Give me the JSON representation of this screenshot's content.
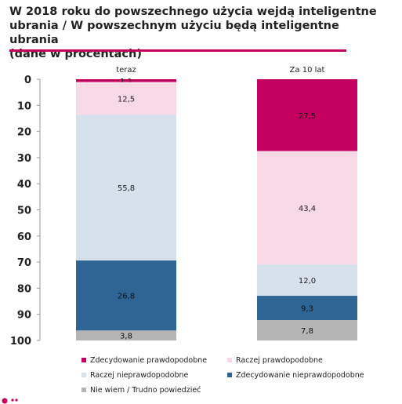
{
  "title_lines": [
    "W 2018 roku do powszechnego użycia wejdą inteligentne",
    "ubrania / W powszechnym użyciu będą inteligentne ubrania",
    "(dane w procentach)"
  ],
  "colors": {
    "accent": "#c4005f",
    "series": [
      "#c4005f",
      "#f8d9e6",
      "#d6e1ec",
      "#2e6594",
      "#b4b4b4"
    ]
  },
  "chart_data": {
    "type": "bar",
    "stacked": true,
    "orientation": "vertical",
    "y_inverted": true,
    "categories": [
      "teraz",
      "Za 10 lat"
    ],
    "ylim": [
      0,
      100
    ],
    "yticks": [
      0,
      10,
      20,
      30,
      40,
      50,
      60,
      70,
      80,
      90,
      100
    ],
    "grid": false,
    "legend_position": "bottom",
    "series": [
      {
        "name": "Zdecydowanie prawdopodobne",
        "values": [
          1.1,
          27.5
        ],
        "labels": [
          "1,1",
          "27,5"
        ]
      },
      {
        "name": "Raczej prawdopodobne",
        "values": [
          12.5,
          43.4
        ],
        "labels": [
          "12,5",
          "43,4"
        ]
      },
      {
        "name": "Raczej nieprawdopodobne",
        "values": [
          55.8,
          12.0
        ],
        "labels": [
          "55,8",
          "12,0"
        ]
      },
      {
        "name": "Zdecydowanie nieprawdopodobne",
        "values": [
          26.8,
          9.3
        ],
        "labels": [
          "26,8",
          "9,3"
        ]
      },
      {
        "name": "Nie wiem / Trudno powiedzieć",
        "values": [
          3.8,
          7.8
        ],
        "labels": [
          "3,8",
          "7,8"
        ]
      }
    ]
  }
}
